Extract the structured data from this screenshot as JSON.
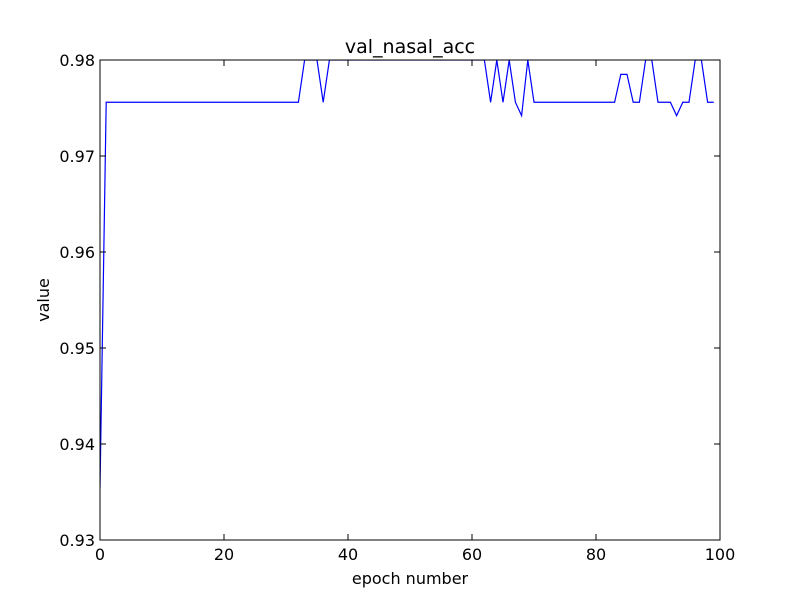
{
  "chart_data": {
    "type": "line",
    "title": "val_nasal_acc",
    "xlabel": "epoch number",
    "ylabel": "value",
    "xlim": [
      0,
      100
    ],
    "ylim": [
      0.93,
      0.98
    ],
    "x_ticks": [
      0,
      20,
      40,
      60,
      80,
      100
    ],
    "x_tick_labels": [
      "0",
      "20",
      "40",
      "60",
      "80",
      "100"
    ],
    "y_ticks": [
      0.93,
      0.94,
      0.95,
      0.96,
      0.97,
      0.98
    ],
    "y_tick_labels": [
      "0.93",
      "0.94",
      "0.95",
      "0.96",
      "0.97",
      "0.98"
    ],
    "grid": false,
    "series": [
      {
        "color": "#0000ff",
        "x": [
          0,
          1,
          2,
          3,
          4,
          5,
          6,
          7,
          8,
          9,
          10,
          11,
          12,
          13,
          14,
          15,
          16,
          17,
          18,
          19,
          20,
          21,
          22,
          23,
          24,
          25,
          26,
          27,
          28,
          29,
          30,
          31,
          32,
          33,
          34,
          35,
          36,
          37,
          38,
          39,
          40,
          41,
          42,
          43,
          44,
          45,
          46,
          47,
          48,
          49,
          50,
          51,
          52,
          53,
          54,
          55,
          56,
          57,
          58,
          59,
          60,
          61,
          62,
          63,
          64,
          65,
          66,
          67,
          68,
          69,
          70,
          71,
          72,
          73,
          74,
          75,
          76,
          77,
          78,
          79,
          80,
          81,
          82,
          83,
          84,
          85,
          86,
          87,
          88,
          89,
          90,
          91,
          92,
          93,
          94,
          95,
          96,
          97,
          98,
          99
        ],
        "y": [
          0.9354,
          0.9756,
          0.9756,
          0.9756,
          0.9756,
          0.9756,
          0.9756,
          0.9756,
          0.9756,
          0.9756,
          0.9756,
          0.9756,
          0.9756,
          0.9756,
          0.9756,
          0.9756,
          0.9756,
          0.9756,
          0.9756,
          0.9756,
          0.9756,
          0.9756,
          0.9756,
          0.9756,
          0.9756,
          0.9756,
          0.9756,
          0.9756,
          0.9756,
          0.9756,
          0.9756,
          0.9756,
          0.9756,
          0.98,
          0.98,
          0.98,
          0.9756,
          0.98,
          0.98,
          0.98,
          0.98,
          0.98,
          0.98,
          0.98,
          0.98,
          0.98,
          0.98,
          0.98,
          0.98,
          0.98,
          0.98,
          0.98,
          0.98,
          0.98,
          0.98,
          0.98,
          0.98,
          0.98,
          0.98,
          0.98,
          0.98,
          0.98,
          0.98,
          0.9756,
          0.98,
          0.9756,
          0.98,
          0.9756,
          0.9742,
          0.98,
          0.9756,
          0.9756,
          0.9756,
          0.9756,
          0.9756,
          0.9756,
          0.9756,
          0.9756,
          0.9756,
          0.9756,
          0.9756,
          0.9756,
          0.9756,
          0.9756,
          0.9785,
          0.9785,
          0.9756,
          0.9756,
          0.98,
          0.98,
          0.9756,
          0.9756,
          0.9756,
          0.9742,
          0.9756,
          0.9756,
          0.98,
          0.98,
          0.9756,
          0.9756
        ]
      }
    ]
  }
}
